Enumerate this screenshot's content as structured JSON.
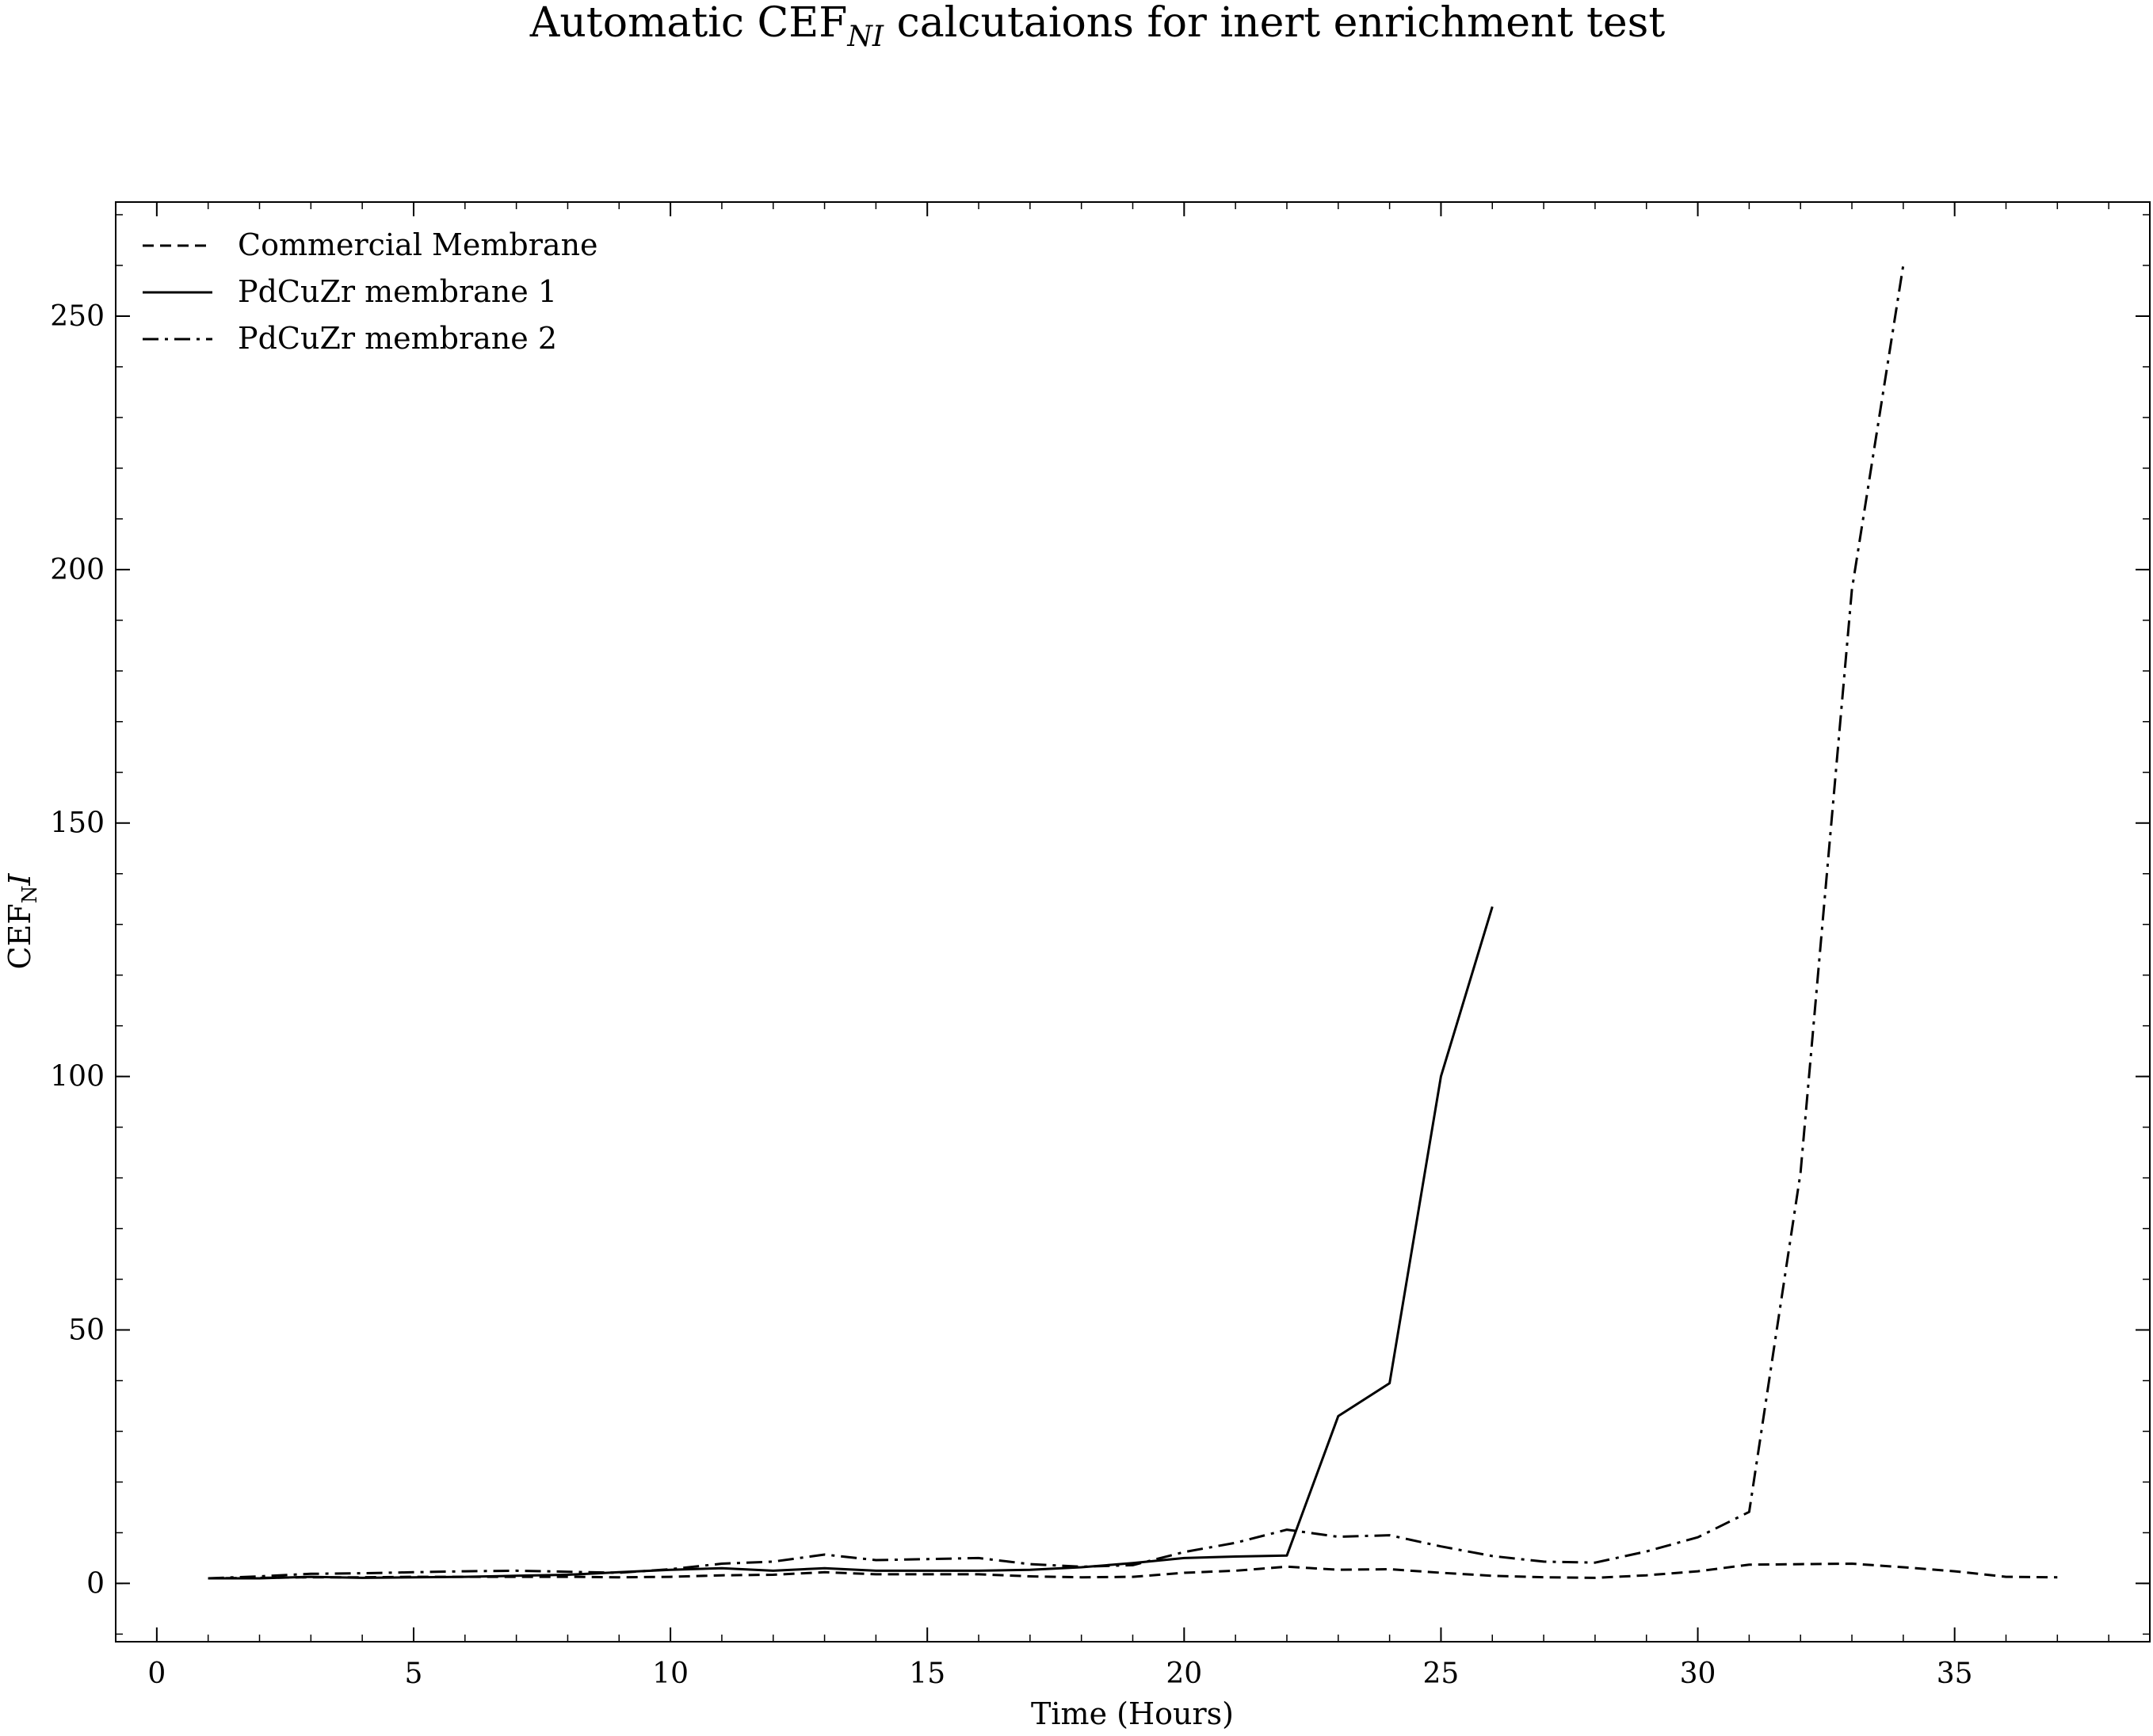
{
  "chart_data": {
    "type": "line",
    "title_main": "Automatic CEF",
    "title_sub": "NI",
    "title_rest": " calcutaions for inert enrichment test",
    "xlabel": "Time (Hours)",
    "ylabel_main": "CEF",
    "ylabel_sub": "N",
    "ylabel_rest": "I",
    "xlim": [
      -0.8,
      38.8
    ],
    "ylim": [
      -11.5,
      272.5
    ],
    "xticks": [
      0,
      5,
      10,
      15,
      20,
      25,
      30,
      35
    ],
    "yticks": [
      0,
      50,
      100,
      150,
      200,
      250
    ],
    "x_minor_step": 1,
    "y_minor_step": 10,
    "grid": false,
    "legend_position": "upper left",
    "series": [
      {
        "name": "Commercial Membrane",
        "style": "dashed",
        "color": "#000000",
        "x": [
          1,
          2,
          3,
          4,
          5,
          6,
          7,
          8,
          9,
          10,
          11,
          12,
          13,
          14,
          15,
          16,
          17,
          18,
          19,
          20,
          21,
          22,
          23,
          24,
          25,
          26,
          27,
          28,
          29,
          30,
          31,
          32,
          33,
          34,
          35,
          36,
          37
        ],
        "values": [
          1,
          1.1,
          1.2,
          1.2,
          1.3,
          1.3,
          1.3,
          1.3,
          1.2,
          1.3,
          1.6,
          1.7,
          2.2,
          1.8,
          1.8,
          1.8,
          1.4,
          1.2,
          1.3,
          2.1,
          2.5,
          3.3,
          2.7,
          2.8,
          2.1,
          1.5,
          1.2,
          1.1,
          1.6,
          2.4,
          3.7,
          3.8,
          3.9,
          3.2,
          2.4,
          1.3,
          1.2
        ]
      },
      {
        "name": "PdCuZr membrane 1",
        "style": "solid",
        "color": "#000000",
        "x": [
          1,
          2,
          3,
          4,
          5,
          6,
          7,
          8,
          9,
          10,
          11,
          12,
          13,
          14,
          15,
          16,
          17,
          18,
          19,
          20,
          21,
          22,
          23,
          24,
          25,
          26
        ],
        "values": [
          1,
          1,
          1.3,
          1.1,
          1.2,
          1.3,
          1.5,
          1.7,
          2.2,
          2.7,
          3.0,
          2.5,
          3.0,
          2.5,
          2.5,
          2.5,
          2.7,
          3.2,
          4.0,
          5.0,
          5.3,
          5.5,
          33,
          39.5,
          100,
          133.5
        ]
      },
      {
        "name": "PdCuZr membrane 2",
        "style": "dashdot",
        "color": "#000000",
        "x": [
          1,
          2,
          3,
          4,
          5,
          6,
          7,
          8,
          9,
          10,
          11,
          12,
          13,
          14,
          15,
          16,
          17,
          18,
          19,
          20,
          21,
          22,
          23,
          24,
          25,
          26,
          27,
          28,
          29,
          30,
          31,
          32,
          33,
          34
        ],
        "values": [
          1,
          1.4,
          1.9,
          2.0,
          2.2,
          2.4,
          2.5,
          2.3,
          2.1,
          2.8,
          3.9,
          4.3,
          5.7,
          4.6,
          4.8,
          5.0,
          3.8,
          3.3,
          3.6,
          6.2,
          8.0,
          10.6,
          9.2,
          9.5,
          7.3,
          5.4,
          4.3,
          4.1,
          6.3,
          9.1,
          14.1,
          81,
          196,
          260
        ]
      }
    ]
  }
}
